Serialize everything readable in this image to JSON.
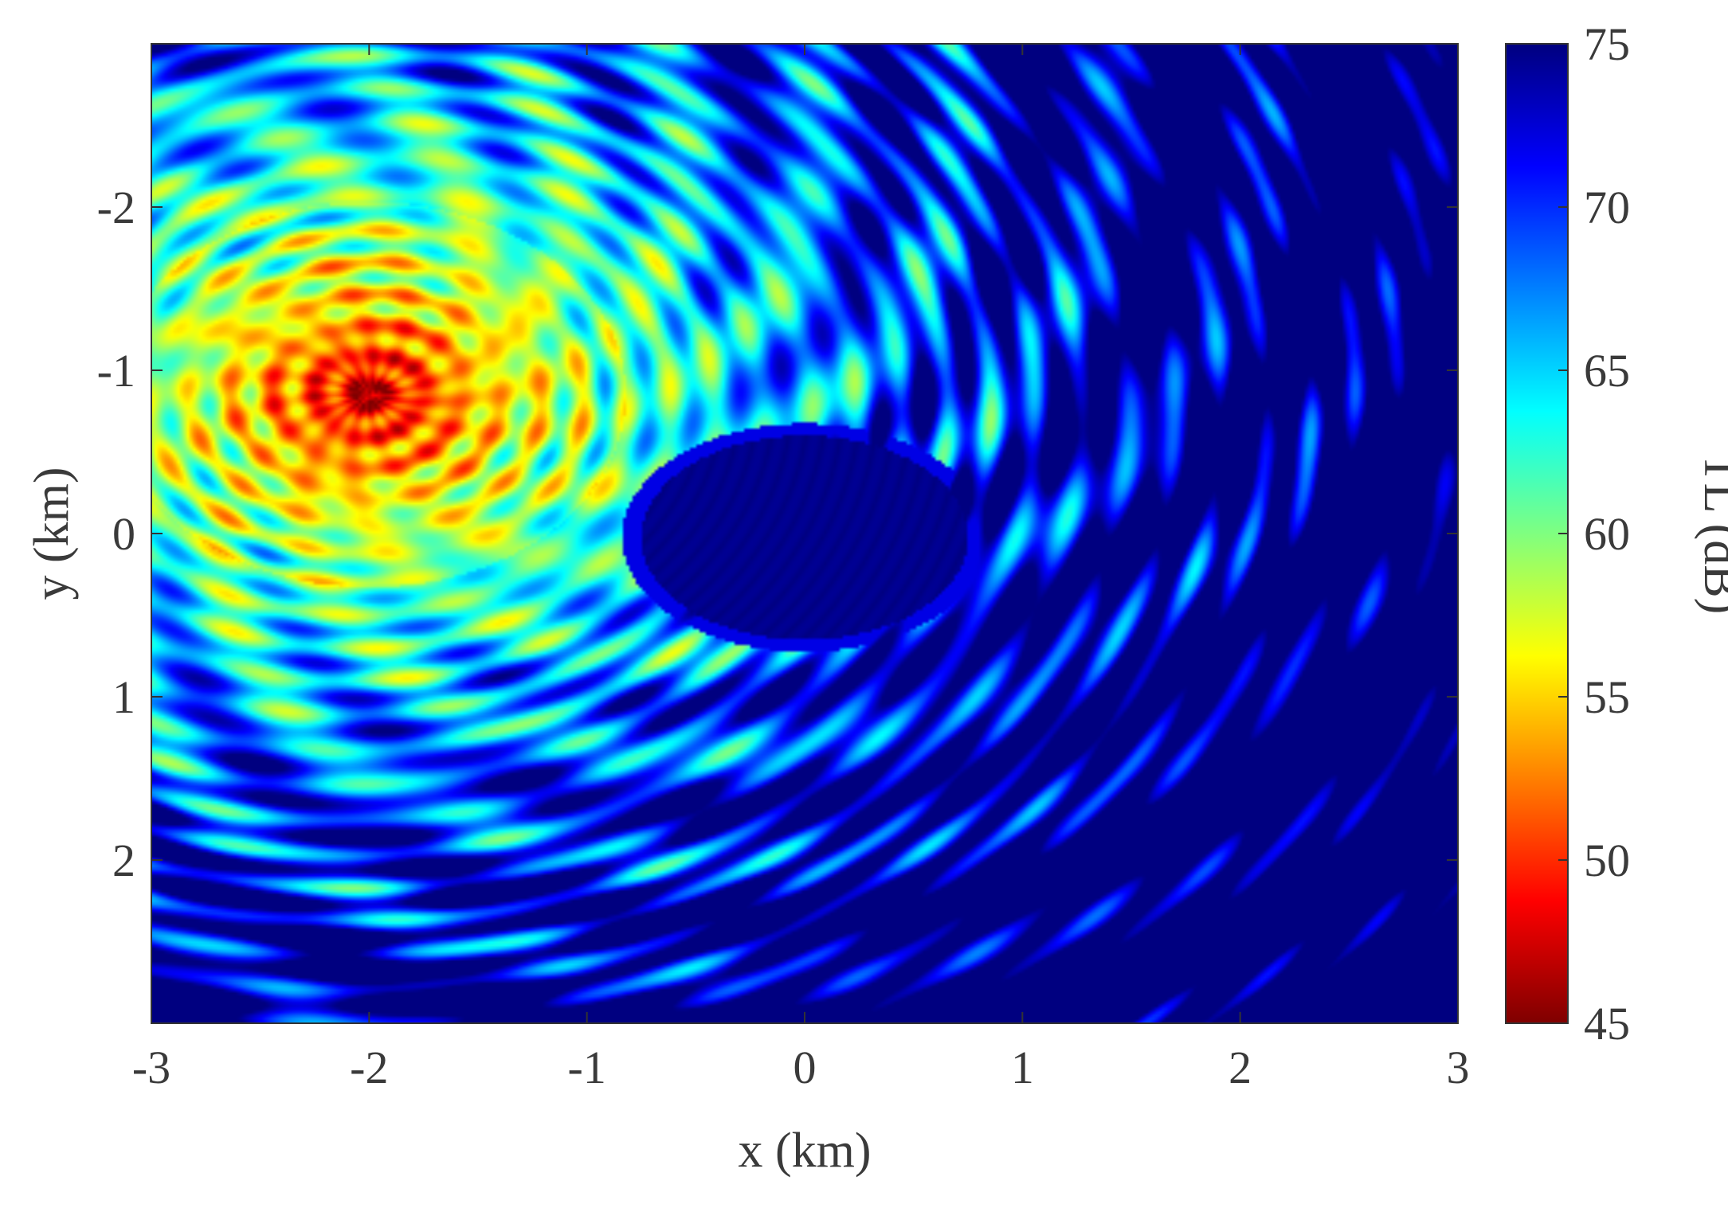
{
  "chart_data": {
    "type": "heatmap",
    "title": "",
    "xlabel": "x (km)",
    "ylabel": "y (km)",
    "xlim": [
      -3,
      3
    ],
    "ylim": [
      -3,
      3
    ],
    "y_axis_direction": "increasing-downward",
    "x_ticks": [
      {
        "value": -3,
        "label": "-3"
      },
      {
        "value": -2,
        "label": "-2"
      },
      {
        "value": -1,
        "label": "-1"
      },
      {
        "value": 0,
        "label": "0"
      },
      {
        "value": 1,
        "label": "1"
      },
      {
        "value": 2,
        "label": "2"
      },
      {
        "value": 3,
        "label": "3"
      }
    ],
    "y_ticks": [
      {
        "value": -2,
        "label": "-2"
      },
      {
        "value": -1,
        "label": "-1"
      },
      {
        "value": 0,
        "label": "0"
      },
      {
        "value": 1,
        "label": "1"
      },
      {
        "value": 2,
        "label": "2"
      }
    ],
    "colorbar": {
      "label": "TL (dB)",
      "range": [
        45,
        75
      ],
      "colormap": "jet-reversed",
      "ticks": [
        {
          "value": 75,
          "label": "75"
        },
        {
          "value": 70,
          "label": "70"
        },
        {
          "value": 65,
          "label": "65"
        },
        {
          "value": 60,
          "label": "60"
        },
        {
          "value": 55,
          "label": "55"
        },
        {
          "value": 50,
          "label": "50"
        },
        {
          "value": 45,
          "label": "45"
        }
      ]
    },
    "features": [
      {
        "kind": "source",
        "x": -2.0,
        "y": -0.85,
        "tl_db": 45
      },
      {
        "kind": "shadow-zone",
        "x_range": [
          -0.75,
          0.75
        ],
        "y_range": [
          -0.6,
          0.65
        ],
        "tl_db": 75
      }
    ],
    "grid": false,
    "legend": "none"
  }
}
